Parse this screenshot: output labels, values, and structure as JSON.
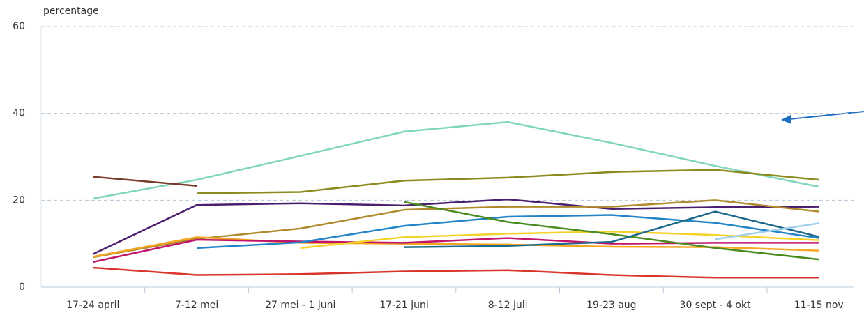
{
  "chart_data": {
    "type": "line",
    "y_label": "percentage",
    "categories": [
      "17-24 april",
      "7-12 mei",
      "27 mei - 1 juni",
      "17-21 juni",
      "8-12 juli",
      "19-23 aug",
      "30 sept - 4 okt",
      "11-15 nov"
    ],
    "series": [
      {
        "color": "#7fd6bb",
        "values": [
          20.4,
          24.7,
          30.2,
          35.8,
          38.0,
          33.2,
          27.9,
          23.1
        ]
      },
      {
        "color": "#7a3b2c",
        "values": [
          25.4,
          23.3,
          null,
          null,
          null,
          null,
          null,
          null
        ]
      },
      {
        "color": "#8b8a1c",
        "values": [
          null,
          21.6,
          21.9,
          24.5,
          25.2,
          26.5,
          27.0,
          24.7
        ]
      },
      {
        "color": "#4b1f6f",
        "values": [
          7.6,
          18.9,
          19.3,
          18.8,
          20.2,
          18.0,
          18.4,
          18.5
        ]
      },
      {
        "color": "#b08a2c",
        "values": [
          6.9,
          11.1,
          13.5,
          17.8,
          18.5,
          18.5,
          20.0,
          17.4
        ]
      },
      {
        "color": "#f5a623",
        "values": [
          7.0,
          11.5,
          10.2,
          10.0,
          9.8,
          9.3,
          9.2,
          8.4
        ]
      },
      {
        "color": "#c0156b",
        "values": [
          5.8,
          10.9,
          10.5,
          10.2,
          11.3,
          10.0,
          10.2,
          10.2
        ]
      },
      {
        "color": "#2285c8",
        "values": [
          null,
          9.0,
          10.3,
          14.1,
          16.2,
          16.6,
          14.8,
          11.3
        ]
      },
      {
        "color": "#f5d22a",
        "values": [
          null,
          null,
          9.0,
          11.5,
          12.3,
          12.8,
          12.0,
          10.8
        ]
      },
      {
        "color": "#4a8b1f",
        "values": [
          null,
          null,
          null,
          19.6,
          15.0,
          12.2,
          9.0,
          6.4
        ]
      },
      {
        "color": "#1b6a8b",
        "values": [
          null,
          null,
          null,
          9.2,
          9.5,
          10.4,
          17.4,
          11.6
        ]
      },
      {
        "color": "#9fcfea",
        "values": [
          null,
          null,
          null,
          null,
          null,
          null,
          11.0,
          14.7
        ]
      },
      {
        "color": "#d9352b",
        "values": [
          4.5,
          2.8,
          3.0,
          3.6,
          3.9,
          2.8,
          2.2,
          2.2
        ]
      }
    ],
    "ylim": [
      0,
      60
    ],
    "yticks": [
      0,
      20,
      40,
      60
    ],
    "grid": true
  }
}
